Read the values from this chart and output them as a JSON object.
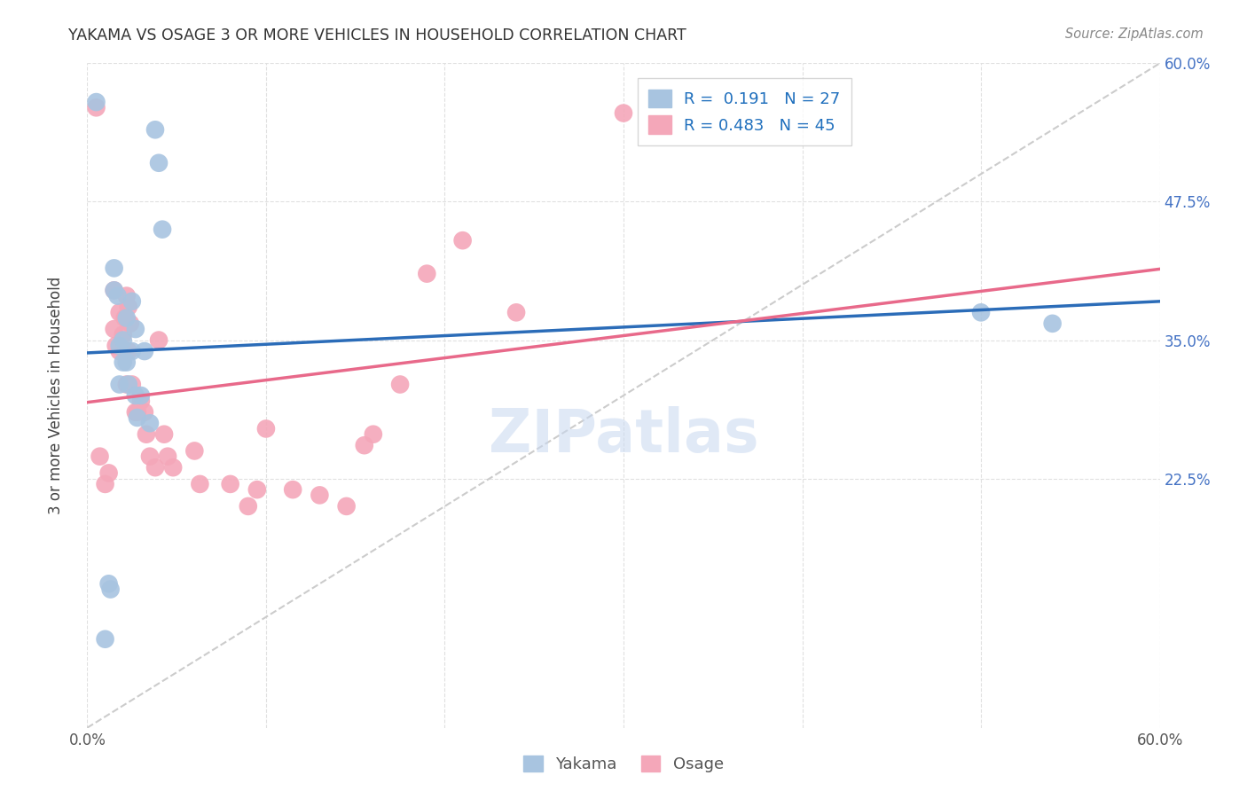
{
  "title": "YAKAMA VS OSAGE 3 OR MORE VEHICLES IN HOUSEHOLD CORRELATION CHART",
  "source": "Source: ZipAtlas.com",
  "ylabel": "3 or more Vehicles in Household",
  "xmin": 0.0,
  "xmax": 0.6,
  "ymin": 0.0,
  "ymax": 0.6,
  "yakama_color": "#a8c4e0",
  "osage_color": "#f4a7b9",
  "yakama_line_color": "#2b6cb8",
  "osage_line_color": "#e8698a",
  "diagonal_color": "#cccccc",
  "watermark": "ZIPatlas",
  "watermark_color": "#c8d8f0",
  "yakama_x": [
    0.005,
    0.01,
    0.012,
    0.013,
    0.015,
    0.015,
    0.017,
    0.018,
    0.018,
    0.02,
    0.02,
    0.022,
    0.022,
    0.023,
    0.025,
    0.025,
    0.027,
    0.027,
    0.028,
    0.03,
    0.032,
    0.035,
    0.038,
    0.04,
    0.042,
    0.5,
    0.54
  ],
  "yakama_y": [
    0.565,
    0.08,
    0.13,
    0.125,
    0.415,
    0.395,
    0.39,
    0.345,
    0.31,
    0.35,
    0.33,
    0.37,
    0.33,
    0.31,
    0.385,
    0.34,
    0.36,
    0.3,
    0.28,
    0.3,
    0.34,
    0.275,
    0.54,
    0.51,
    0.45,
    0.375,
    0.365
  ],
  "osage_x": [
    0.005,
    0.007,
    0.01,
    0.012,
    0.015,
    0.015,
    0.016,
    0.018,
    0.018,
    0.02,
    0.021,
    0.021,
    0.022,
    0.022,
    0.023,
    0.023,
    0.024,
    0.025,
    0.027,
    0.028,
    0.03,
    0.032,
    0.033,
    0.035,
    0.038,
    0.04,
    0.043,
    0.045,
    0.048,
    0.06,
    0.063,
    0.08,
    0.09,
    0.095,
    0.1,
    0.115,
    0.13,
    0.145,
    0.155,
    0.16,
    0.175,
    0.19,
    0.21,
    0.24,
    0.3
  ],
  "osage_y": [
    0.56,
    0.245,
    0.22,
    0.23,
    0.395,
    0.36,
    0.345,
    0.375,
    0.34,
    0.355,
    0.37,
    0.34,
    0.39,
    0.31,
    0.38,
    0.34,
    0.365,
    0.31,
    0.285,
    0.285,
    0.295,
    0.285,
    0.265,
    0.245,
    0.235,
    0.35,
    0.265,
    0.245,
    0.235,
    0.25,
    0.22,
    0.22,
    0.2,
    0.215,
    0.27,
    0.215,
    0.21,
    0.2,
    0.255,
    0.265,
    0.31,
    0.41,
    0.44,
    0.375,
    0.555
  ]
}
